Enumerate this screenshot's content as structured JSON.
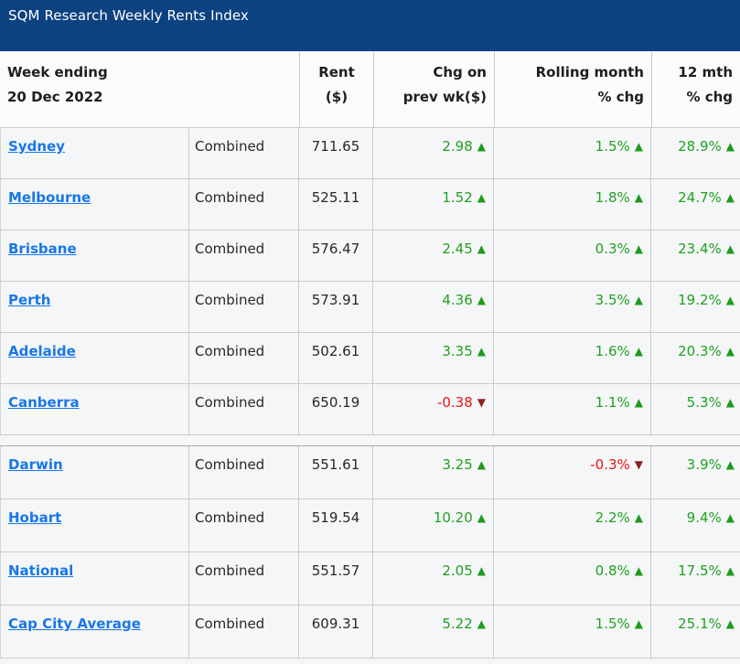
{
  "title_bar": {
    "title": "SQM Research Weekly Rents Index"
  },
  "header": {
    "week_ending_line1": "Week ending",
    "week_ending_line2": "20 Dec 2022",
    "rent_line1": "Rent",
    "rent_line2": "($)",
    "chg_line1": "Chg on",
    "chg_line2": "prev wk($)",
    "rolling_line1": "Rolling month",
    "rolling_line2": "% chg",
    "twelve_line1": "12 mth",
    "twelve_line2": "% chg"
  },
  "colors": {
    "title_bar_bg": "#0d4281",
    "link_blue": "#1877e8",
    "up_green": "#22a022",
    "up_arrow_green": "#1e9b1e",
    "down_red": "#ea1318",
    "down_arrow_maroon": "#8e2323",
    "row_bg": "#f5f6f7",
    "border_gray": "#cbcbcb"
  },
  "table": {
    "groups": [
      {
        "rows": [
          {
            "city": "Sydney",
            "type": "Combined",
            "rent": "711.65",
            "chg": "2.98",
            "chg_arrow": "▲",
            "roll": "1.5%",
            "roll_arrow": "▲",
            "yr": "28.9%",
            "yr_arrow": "▲"
          },
          {
            "city": "Melbourne",
            "type": "Combined",
            "rent": "525.11",
            "chg": "1.52",
            "chg_arrow": "▲",
            "roll": "1.8%",
            "roll_arrow": "▲",
            "yr": "24.7%",
            "yr_arrow": "▲"
          },
          {
            "city": "Brisbane",
            "type": "Combined",
            "rent": "576.47",
            "chg": "2.45",
            "chg_arrow": "▲",
            "roll": "0.3%",
            "roll_arrow": "▲",
            "yr": "23.4%",
            "yr_arrow": "▲"
          },
          {
            "city": "Perth",
            "type": "Combined",
            "rent": "573.91",
            "chg": "4.36",
            "chg_arrow": "▲",
            "roll": "3.5%",
            "roll_arrow": "▲",
            "yr": "19.2%",
            "yr_arrow": "▲"
          },
          {
            "city": "Adelaide",
            "type": "Combined",
            "rent": "502.61",
            "chg": "3.35",
            "chg_arrow": "▲",
            "roll": "1.6%",
            "roll_arrow": "▲",
            "yr": "20.3%",
            "yr_arrow": "▲"
          },
          {
            "city": "Canberra",
            "type": "Combined",
            "rent": "650.19",
            "chg": "-0.38",
            "chg_arrow": "▼",
            "roll": "1.1%",
            "roll_arrow": "▲",
            "yr": "5.3%",
            "yr_arrow": "▲"
          }
        ]
      },
      {
        "rows": [
          {
            "city": "Darwin",
            "type": "Combined",
            "rent": "551.61",
            "chg": "3.25",
            "chg_arrow": "▲",
            "roll": "-0.3%",
            "roll_arrow": "▼",
            "yr": "3.9%",
            "yr_arrow": "▲"
          },
          {
            "city": "Hobart",
            "type": "Combined",
            "rent": "519.54",
            "chg": "10.20",
            "chg_arrow": "▲",
            "roll": "2.2%",
            "roll_arrow": "▲",
            "yr": "9.4%",
            "yr_arrow": "▲"
          },
          {
            "city": "National",
            "type": "Combined",
            "rent": "551.57",
            "chg": "2.05",
            "chg_arrow": "▲",
            "roll": "0.8%",
            "roll_arrow": "▲",
            "yr": "17.5%",
            "yr_arrow": "▲"
          },
          {
            "city": "Cap City Average",
            "type": "Combined",
            "rent": "609.31",
            "chg": "5.22",
            "chg_arrow": "▲",
            "roll": "1.5%",
            "roll_arrow": "▲",
            "yr": "25.1%",
            "yr_arrow": "▲"
          }
        ]
      }
    ]
  }
}
